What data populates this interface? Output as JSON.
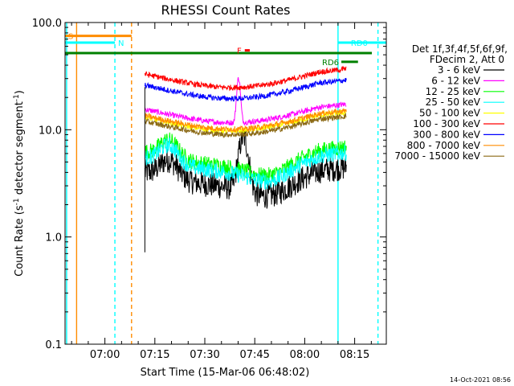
{
  "chart_data": {
    "type": "line",
    "title": "RHESSI Count Rates",
    "xlabel": "Start Time (15-Mar-06 06:48:02)",
    "ylabel_text": "Count Rate (s",
    "ylabel_sup1": "-1",
    "ylabel_mid": " detector segment",
    "ylabel_sup2": "-1",
    "ylabel_end": ")",
    "y_scale": "log",
    "ylim": [
      0.1,
      100.0
    ],
    "y_ticks": [
      {
        "value": 0.1,
        "label": "0.1"
      },
      {
        "value": 1.0,
        "label": "1.0"
      },
      {
        "value": 10.0,
        "label": "10.0"
      },
      {
        "value": 100.0,
        "label": "100.0"
      }
    ],
    "x_range": [
      "06:48:02",
      "08:24:30"
    ],
    "x_ticks": [
      {
        "time": "07:00",
        "label": "07:00"
      },
      {
        "time": "07:15",
        "label": "07:15"
      },
      {
        "time": "07:30",
        "label": "07:30"
      },
      {
        "time": "07:45",
        "label": "07:45"
      },
      {
        "time": "08:00",
        "label": "08:00"
      },
      {
        "time": "08:15",
        "label": "08:15"
      }
    ],
    "legend_header": [
      "Det 1f,3f,4f,5f,6f,9f,",
      "FDecim 2, Att 0"
    ],
    "legend_placement": "right",
    "series": [
      {
        "name": "3 - 6 keV",
        "color": "#000000",
        "level": 4.0
      },
      {
        "name": "6 - 12 keV",
        "color": "#ff00ff",
        "level": 15.5
      },
      {
        "name": "12 - 25 keV",
        "color": "#00ff00",
        "level": 6.2
      },
      {
        "name": "25 - 50 keV",
        "color": "#00ffff",
        "level": 5.5
      },
      {
        "name": "50 - 100 keV",
        "color": "#ffff00",
        "level": 13.0
      },
      {
        "name": "100 - 300 keV",
        "color": "#ff0000",
        "level": 33.0
      },
      {
        "name": "300 - 800 keV",
        "color": "#0000ff",
        "level": 26.0
      },
      {
        "name": "800 - 7000 keV",
        "color": "#ff8c00",
        "level": 13.5
      },
      {
        "name": "7000 - 15000 keV",
        "color": "#8b6914",
        "level": 12.0
      }
    ],
    "flags": [
      {
        "label": "S",
        "color": "#ff8c00",
        "start": "06:48:02",
        "end": "07:08:00",
        "y": 75
      },
      {
        "label": "N",
        "color": "#00ffff",
        "start": "06:48:02",
        "end": "07:03:00",
        "y": 65
      },
      {
        "label": "F",
        "color": "#ff0000",
        "start": "07:42:00",
        "end": "07:43:30",
        "y": 55
      },
      {
        "label": "RD0",
        "color": "#00ffff",
        "start": "08:10:00",
        "end": "08:24:30",
        "y": 65
      },
      {
        "label": "RD6",
        "color": "#008000",
        "start": "08:11:00",
        "end": "08:16:00",
        "y": 43
      }
    ],
    "timestamp": "14-Oct-2021 08:56"
  }
}
